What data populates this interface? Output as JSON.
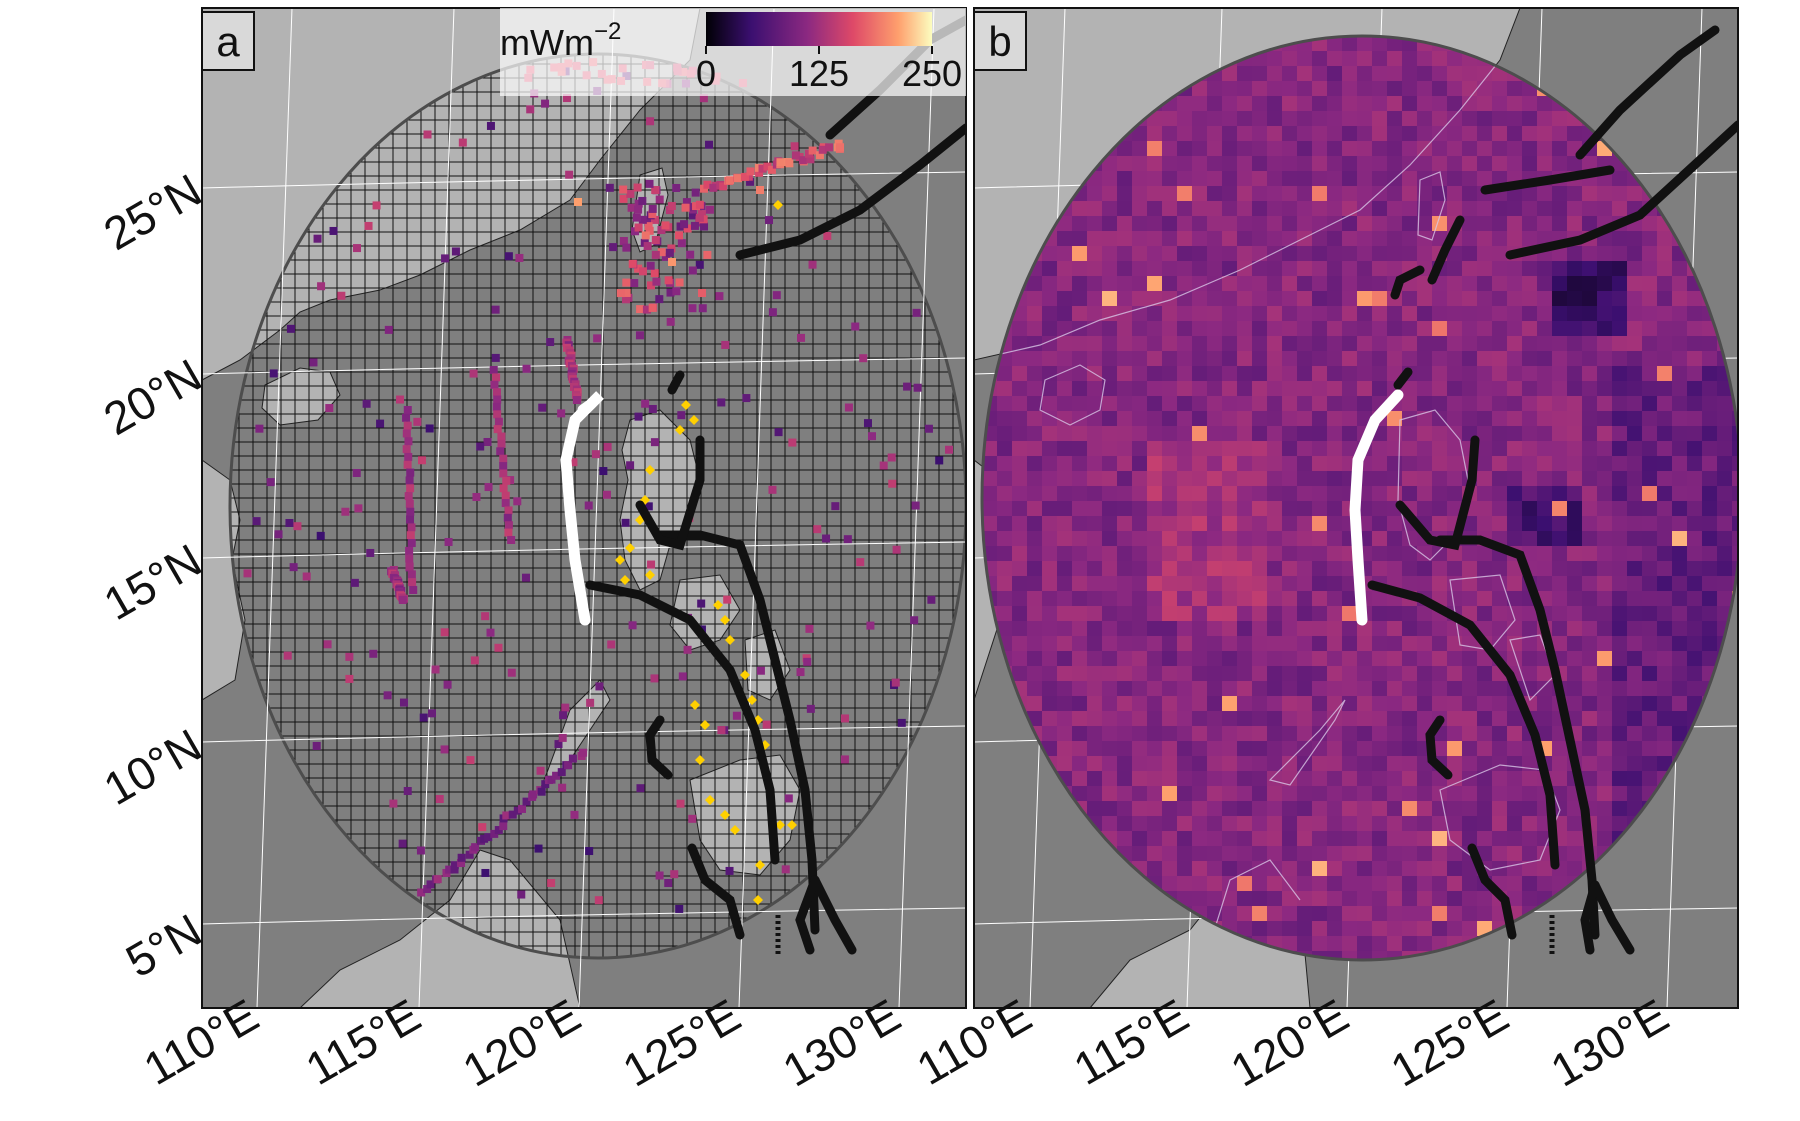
{
  "panels": [
    {
      "id": "a",
      "label": "a",
      "representation": "heat-flow observation points on equal-area grid"
    },
    {
      "id": "b",
      "label": "b",
      "representation": "interpolated heat-flow grid"
    }
  ],
  "colorbar": {
    "unit": "mWm",
    "unit_exponent": "−2",
    "colormap": "magma",
    "ticks": [
      "0",
      "125",
      "250"
    ],
    "range": [
      0,
      250
    ],
    "colors": [
      "#000004",
      "#3b0f70",
      "#8c2981",
      "#de4968",
      "#fe9f6d",
      "#fcfdbf"
    ]
  },
  "axes": {
    "lat_ticks": [
      "25°N",
      "20°N",
      "15°N",
      "10°N",
      "5°N"
    ],
    "lon_ticks": [
      "110°E",
      "115°E",
      "120°E",
      "125°E",
      "130°E"
    ]
  },
  "colors": {
    "ocean": "#7f7f7f",
    "land": "#b3b3b3",
    "grid_cell_stroke": "#111111",
    "trench": "#111111",
    "ridge": "#ffffff",
    "volcano": "#ffd000",
    "domain_outline": "#4d4d4d",
    "graticule": "#ffffff"
  },
  "legend_symbols": {
    "volcano_marker": "yellow diamond",
    "trench_line": "thick black line",
    "ridge_line": "thick white line"
  }
}
